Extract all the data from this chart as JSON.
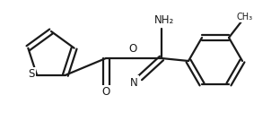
{
  "bg_color": "#ffffff",
  "line_color": "#1a1a1a",
  "line_width": 1.6,
  "font_size_atom": 8.5,
  "font_size_small": 7.5,
  "figsize": [
    3.12,
    1.35
  ],
  "dpi": 100,
  "xlim": [
    0,
    312
  ],
  "ylim": [
    0,
    135
  ]
}
